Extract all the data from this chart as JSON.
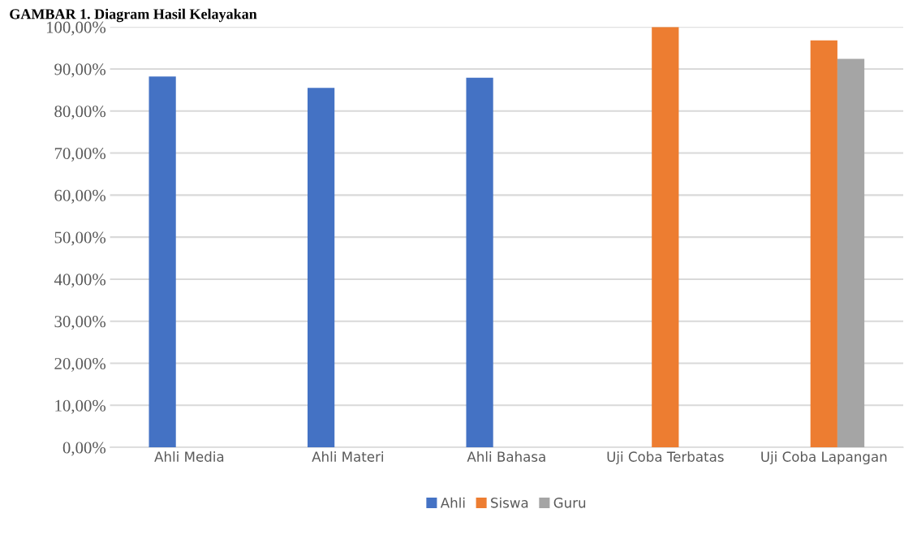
{
  "chart_data": {
    "type": "bar",
    "title": "GAMBAR 1. Diagram Hasil Kelayakan",
    "categories": [
      "Ahli Media",
      "Ahli Materi",
      "Ahli Bahasa",
      "Uji Coba Terbatas",
      "Uji Coba Lapangan"
    ],
    "series": [
      {
        "name": "Ahli",
        "color": "#4472c4",
        "values": [
          88.2,
          85.5,
          87.9,
          null,
          null
        ]
      },
      {
        "name": "Siswa",
        "color": "#ed7d31",
        "values": [
          null,
          null,
          null,
          100,
          96.8
        ]
      },
      {
        "name": "Guru",
        "color": "#a5a5a5",
        "values": [
          null,
          null,
          null,
          null,
          92.4
        ]
      }
    ],
    "ylim": [
      0,
      100
    ],
    "yticks": [
      {
        "value": 0,
        "label": "0,00%"
      },
      {
        "value": 10,
        "label": "10,00%"
      },
      {
        "value": 20,
        "label": "20,00%"
      },
      {
        "value": 30,
        "label": "30,00%"
      },
      {
        "value": 40,
        "label": "40,00%"
      },
      {
        "value": 50,
        "label": "50,00%"
      },
      {
        "value": 60,
        "label": "60,00%"
      },
      {
        "value": 70,
        "label": "70,00%"
      },
      {
        "value": 80,
        "label": "80,00%"
      },
      {
        "value": 90,
        "label": "90,00%"
      },
      {
        "value": 100,
        "label": "100,00%"
      }
    ],
    "grid": "y",
    "legend": "bottom"
  }
}
